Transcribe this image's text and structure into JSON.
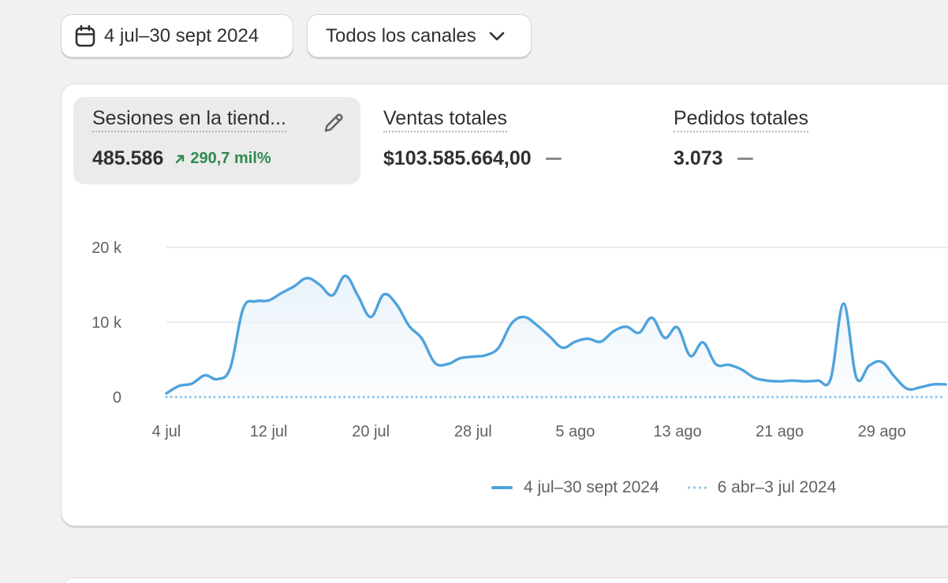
{
  "filters": {
    "date_range": "4 jul–30 sept 2024",
    "channel": "Todos los canales"
  },
  "metrics": [
    {
      "title": "Sesiones en la tiend...",
      "value": "485.586",
      "trend": "290,7 mil%"
    },
    {
      "title": "Ventas totales",
      "value": "$103.585.664,00"
    },
    {
      "title": "Pedidos totales",
      "value": "3.073"
    }
  ],
  "colors": {
    "primary_series": "#4fa3dc",
    "comparison_series": "#8fc3e6",
    "trend_positive": "#2f8a4f"
  },
  "icons": {
    "date": "calendar-icon",
    "channel": "chevron-down-icon",
    "trend": "arrow-up-right-icon",
    "edit": "pencil-icon"
  },
  "chart_data": {
    "type": "line",
    "xlabel": "",
    "ylabel": "",
    "ylim": [
      0,
      20000
    ],
    "y_ticks": [
      {
        "value": 0,
        "label": "0"
      },
      {
        "value": 10000,
        "label": "10 k"
      },
      {
        "value": 20000,
        "label": "20 k"
      }
    ],
    "x_ticks": [
      {
        "day": 0,
        "label": "4 jul"
      },
      {
        "day": 8,
        "label": "12 jul"
      },
      {
        "day": 16,
        "label": "20 jul"
      },
      {
        "day": 24,
        "label": "28 jul"
      },
      {
        "day": 32,
        "label": "5 ago"
      },
      {
        "day": 40,
        "label": "13 ago"
      },
      {
        "day": 48,
        "label": "21 ago"
      },
      {
        "day": 56,
        "label": "29 ago"
      }
    ],
    "grid": true,
    "legend": "bottom",
    "series": [
      {
        "name": "4 jul–30 sept 2024",
        "style": "solid",
        "values": [
          500,
          1500,
          1800,
          2900,
          2400,
          3900,
          11800,
          12800,
          12900,
          13900,
          14800,
          15900,
          15000,
          13600,
          16200,
          13500,
          10700,
          13700,
          12400,
          9500,
          7800,
          4600,
          4400,
          5200,
          5400,
          5600,
          6600,
          9800,
          10700,
          9600,
          8100,
          6600,
          7400,
          7800,
          7400,
          8800,
          9400,
          8600,
          10600,
          7900,
          9300,
          5500,
          7300,
          4400,
          4300,
          3700,
          2600,
          2200,
          2100,
          2200,
          2100,
          2200,
          2500,
          12500,
          2600,
          4200,
          4700,
          2700,
          1100,
          1300,
          1700,
          1700
        ]
      },
      {
        "name": "6 abr–3 jul 2024",
        "style": "dotted",
        "values": [
          0,
          0,
          0,
          0,
          0,
          0,
          0,
          0,
          0,
          0,
          0,
          0,
          0,
          0,
          0,
          0,
          0,
          0,
          0,
          0,
          0,
          0,
          0,
          0,
          0,
          0,
          0,
          0,
          0,
          0,
          0,
          0,
          0,
          0,
          0,
          0,
          0,
          0,
          0,
          0,
          0,
          0,
          0,
          0,
          0,
          0,
          0,
          0,
          0,
          0,
          0,
          0,
          0,
          0,
          0,
          0,
          0,
          0,
          0,
          0,
          0,
          0
        ]
      }
    ]
  }
}
